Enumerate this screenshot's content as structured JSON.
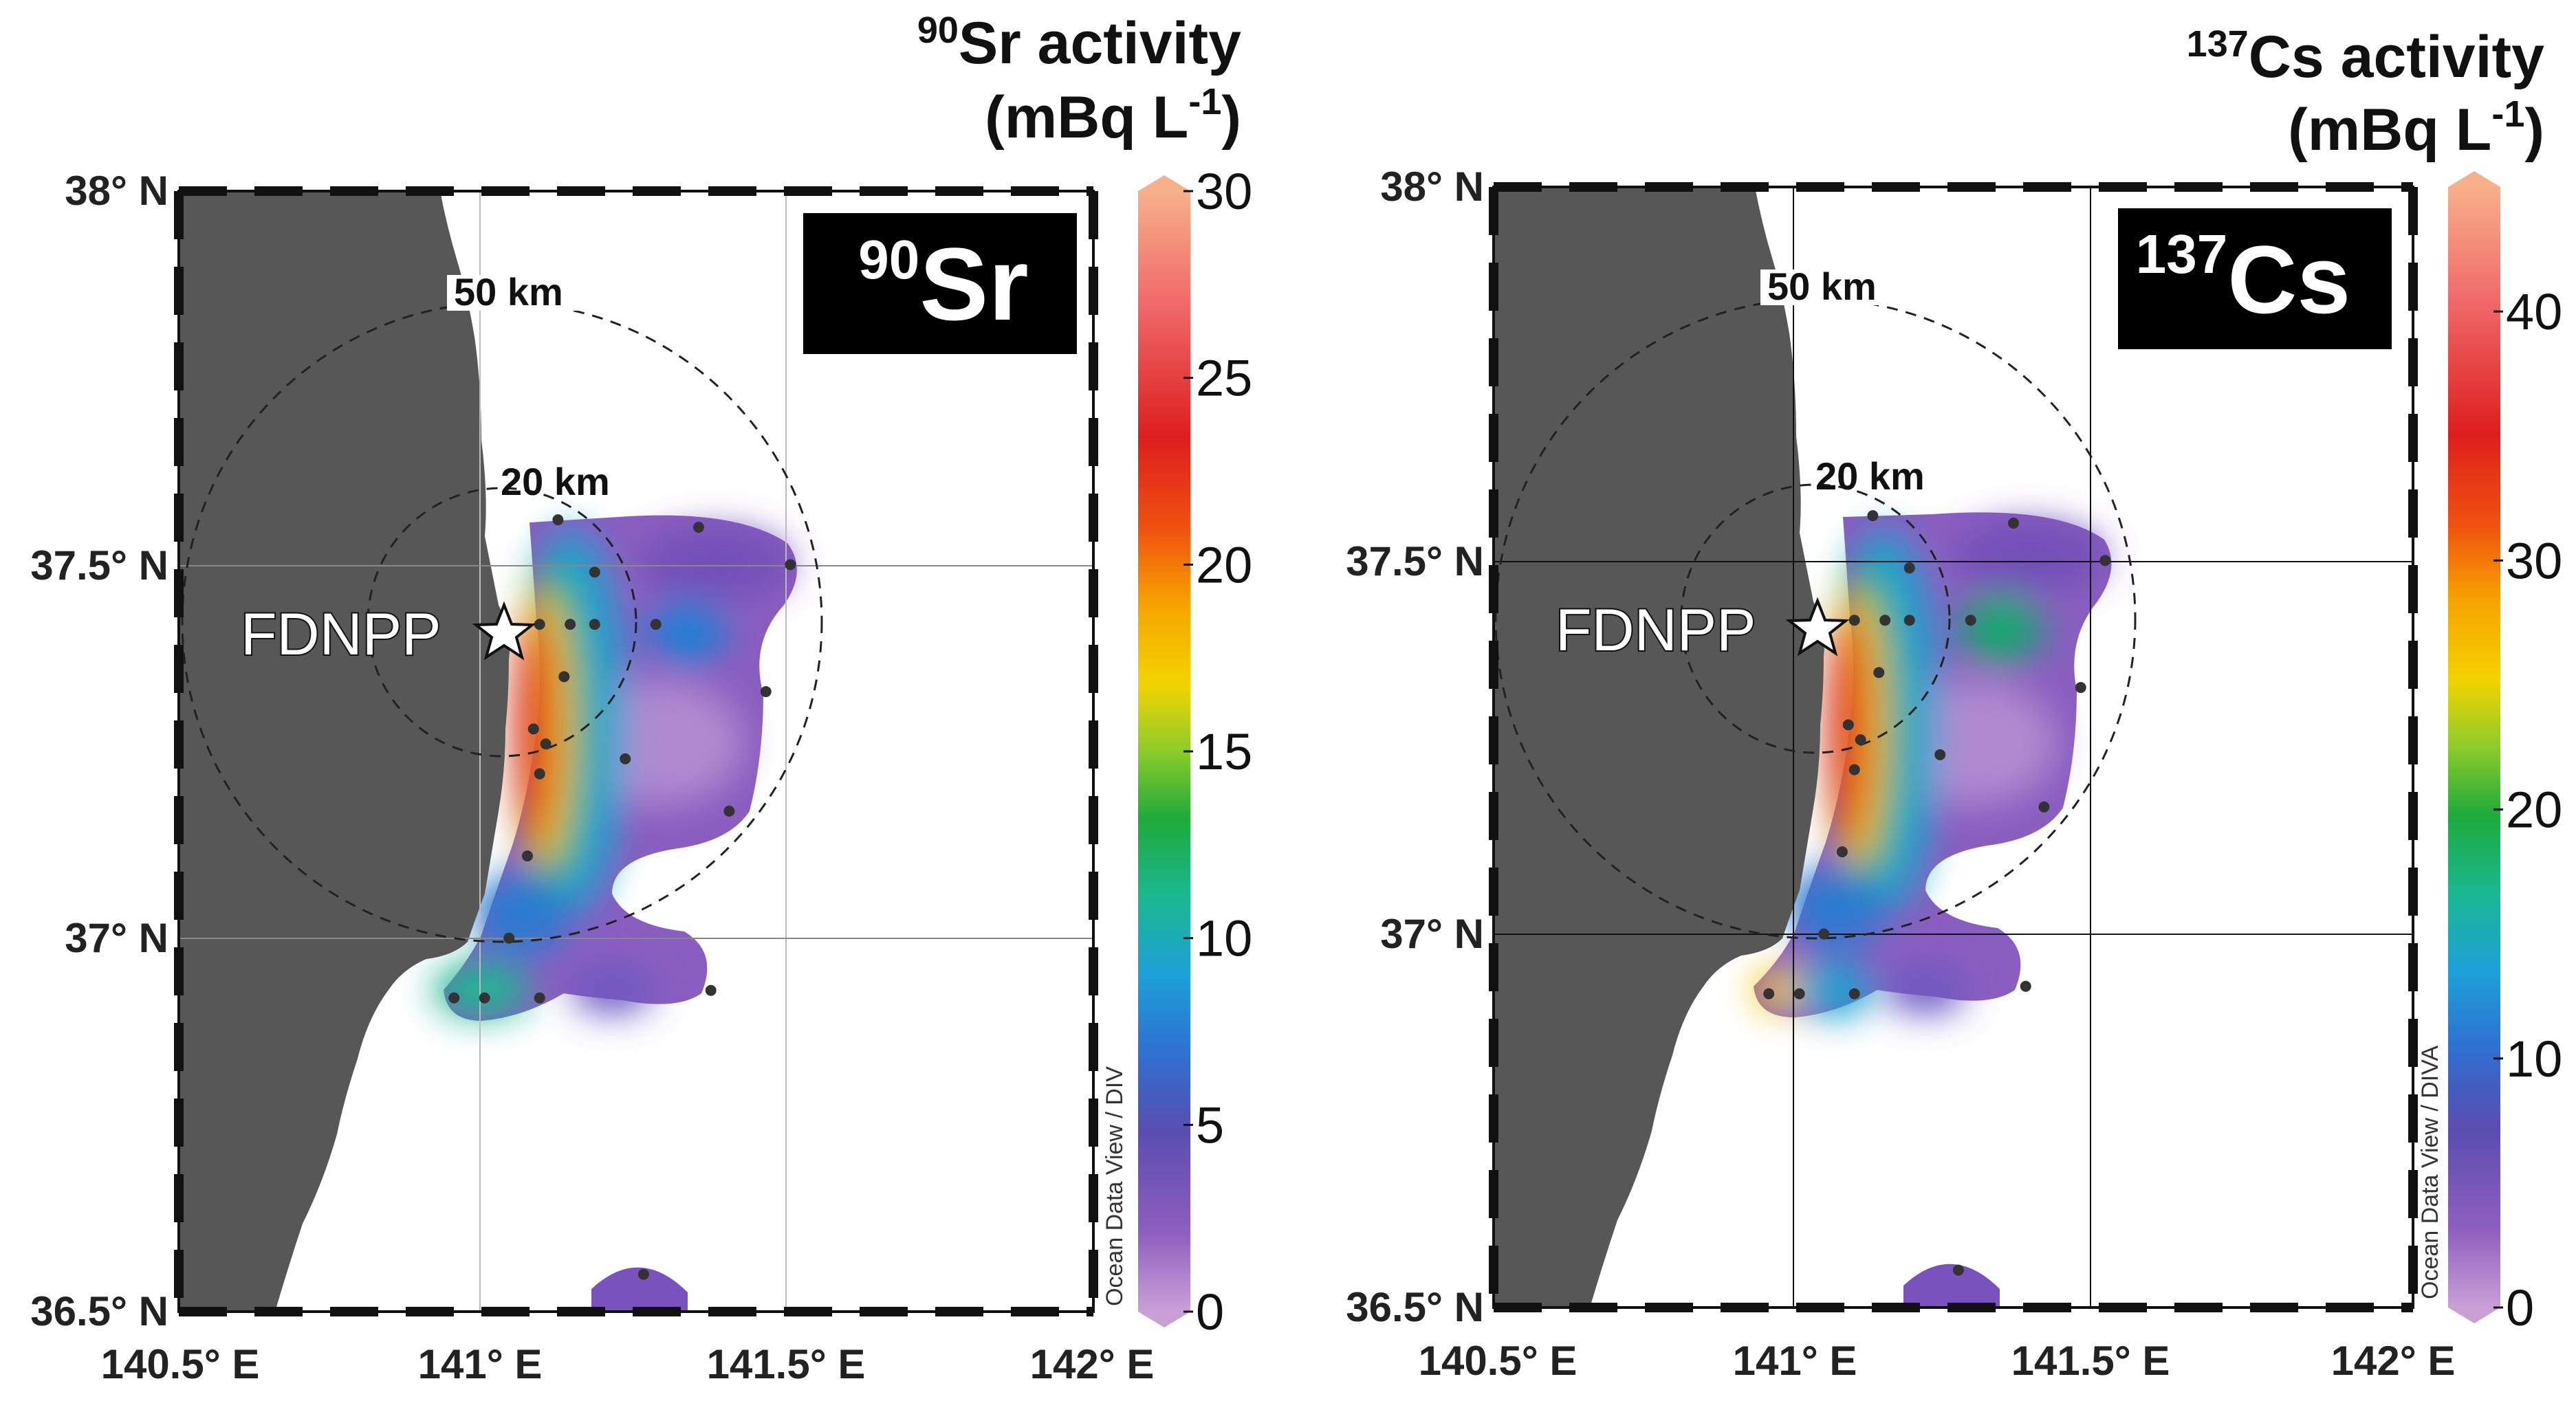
{
  "panels": [
    {
      "id": "sr",
      "badge_sup": "90",
      "badge_main": "Sr",
      "cb_title_sup": "90",
      "cb_title_1": "Sr activity",
      "cb_title_2a": "(mBq L",
      "cb_title_2sup": "-1",
      "cb_title_2b": ")",
      "cb_ticks": [
        "0",
        "5",
        "10",
        "15",
        "20",
        "25",
        "30"
      ],
      "cb_min": 0,
      "cb_max": 30,
      "credit": "Ocean Data View / DIV",
      "marker_label": "FDNPP",
      "ring_outer_label": "50 km",
      "ring_inner_label": "20 km",
      "lat_labels": [
        "38° N",
        "37.5° N",
        "37° N",
        "36.5° N"
      ],
      "lon_labels": [
        "140.5° E",
        "141° E",
        "141.5° E",
        "142° E"
      ]
    },
    {
      "id": "cs",
      "badge_sup": "137",
      "badge_main": "Cs",
      "cb_title_sup": "137",
      "cb_title_1": "Cs activity",
      "cb_title_2a": "(mBq L",
      "cb_title_2sup": "-1",
      "cb_title_2b": ")",
      "cb_ticks": [
        "0",
        "10",
        "20",
        "30",
        "40"
      ],
      "cb_min": 0,
      "cb_max": 45,
      "credit": "Ocean Data View / DIVA",
      "marker_label": "FDNPP",
      "ring_outer_label": "50 km",
      "ring_inner_label": "20 km",
      "lat_labels": [
        "38° N",
        "37.5° N",
        "37° N",
        "36.5° N"
      ],
      "lon_labels": [
        "140.5° E",
        "141° E",
        "141.5° E",
        "142° E"
      ]
    }
  ],
  "stations_lonlat": [
    [
      141.12,
      37.56
    ],
    [
      141.35,
      37.55
    ],
    [
      141.5,
      37.5
    ],
    [
      141.18,
      37.49
    ],
    [
      141.28,
      37.42
    ],
    [
      141.09,
      37.42
    ],
    [
      141.14,
      37.42
    ],
    [
      141.18,
      37.42
    ],
    [
      141.13,
      37.35
    ],
    [
      141.46,
      37.33
    ],
    [
      141.08,
      37.28
    ],
    [
      141.1,
      37.26
    ],
    [
      141.23,
      37.24
    ],
    [
      141.09,
      37.22
    ],
    [
      141.4,
      37.17
    ],
    [
      141.07,
      37.11
    ],
    [
      141.04,
      37.0
    ],
    [
      140.95,
      36.92
    ],
    [
      141.0,
      36.92
    ],
    [
      141.09,
      36.92
    ],
    [
      141.37,
      36.93
    ],
    [
      141.26,
      36.55
    ]
  ],
  "plant_lonlat": [
    141.033,
    37.421
  ],
  "colormap": [
    "#c9a0d6",
    "#8e5fbf",
    "#5a4db0",
    "#2f6fd0",
    "#1ea0d8",
    "#1ab890",
    "#1faa3a",
    "#8ccc2a",
    "#f2d400",
    "#f7a400",
    "#f05010",
    "#dd1e1e",
    "#f06a6a",
    "#f7b08a"
  ]
}
